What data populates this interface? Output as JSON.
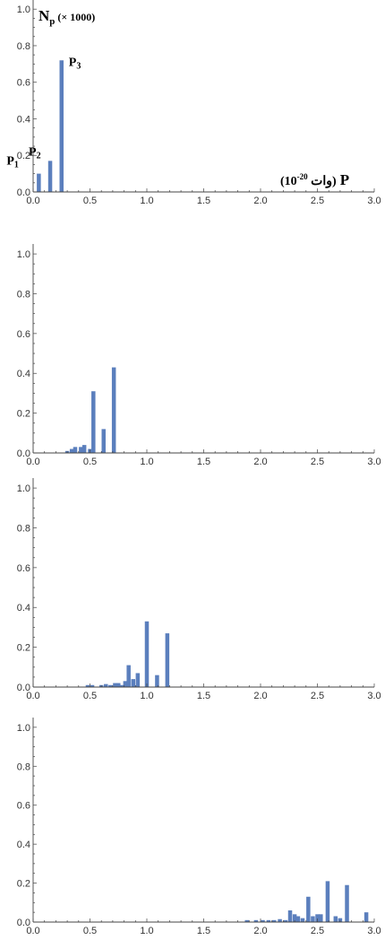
{
  "colors": {
    "bar": "#5b7fbd",
    "axis": "#444444",
    "text": "#333333"
  },
  "chart_data": [
    {
      "type": "bar",
      "xlim": [
        0,
        3.0
      ],
      "ylim": [
        0,
        1.05
      ],
      "xticks": [
        "0.0",
        "0.5",
        "1.0",
        "1.5",
        "2.0",
        "2.5",
        "3.0"
      ],
      "yticks": [
        "0.0",
        "0.2",
        "0.4",
        "0.6",
        "0.8",
        "1.0"
      ],
      "ylabel": {
        "main": "N",
        "sub": "p",
        "suffix": "(× 1000)"
      },
      "xlabel": {
        "rtl": "(10",
        "exp": "-20",
        "unit": " وات)",
        "var": "P"
      },
      "annotations": [
        {
          "main": "P",
          "sub": "1",
          "x": 0.05,
          "y": 0.09
        },
        {
          "main": "P",
          "sub": "2",
          "x": 0.15,
          "y": 0.17
        },
        {
          "main": "P",
          "sub": "3",
          "x": 0.25,
          "y": 0.72
        }
      ],
      "bars": [
        {
          "x": 0.05,
          "y": 0.1
        },
        {
          "x": 0.15,
          "y": 0.17
        },
        {
          "x": 0.25,
          "y": 0.72
        }
      ]
    },
    {
      "type": "bar",
      "xlim": [
        0,
        3.0
      ],
      "ylim": [
        0,
        1.05
      ],
      "xticks": [
        "0.0",
        "0.5",
        "1.0",
        "1.5",
        "2.0",
        "2.5",
        "3.0"
      ],
      "yticks": [
        "0.0",
        "0.2",
        "0.4",
        "0.6",
        "0.8",
        "1.0"
      ],
      "bars": [
        {
          "x": 0.3,
          "y": 0.01
        },
        {
          "x": 0.34,
          "y": 0.02
        },
        {
          "x": 0.37,
          "y": 0.03
        },
        {
          "x": 0.42,
          "y": 0.03
        },
        {
          "x": 0.45,
          "y": 0.04
        },
        {
          "x": 0.5,
          "y": 0.02
        },
        {
          "x": 0.53,
          "y": 0.31
        },
        {
          "x": 0.62,
          "y": 0.12
        },
        {
          "x": 0.71,
          "y": 0.43
        }
      ]
    },
    {
      "type": "bar",
      "xlim": [
        0,
        3.0
      ],
      "ylim": [
        0,
        1.05
      ],
      "xticks": [
        "0.0",
        "0.5",
        "1.0",
        "1.5",
        "2.0",
        "2.5",
        "3.0"
      ],
      "yticks": [
        "0.0",
        "0.2",
        "0.4",
        "0.6",
        "0.8",
        "1.0"
      ],
      "bars": [
        {
          "x": 0.48,
          "y": 0.01
        },
        {
          "x": 0.52,
          "y": 0.01
        },
        {
          "x": 0.6,
          "y": 0.01
        },
        {
          "x": 0.64,
          "y": 0.015
        },
        {
          "x": 0.68,
          "y": 0.01
        },
        {
          "x": 0.72,
          "y": 0.02
        },
        {
          "x": 0.75,
          "y": 0.02
        },
        {
          "x": 0.78,
          "y": 0.01
        },
        {
          "x": 0.81,
          "y": 0.03
        },
        {
          "x": 0.84,
          "y": 0.11
        },
        {
          "x": 0.88,
          "y": 0.04
        },
        {
          "x": 0.92,
          "y": 0.07
        },
        {
          "x": 1.0,
          "y": 0.33
        },
        {
          "x": 1.09,
          "y": 0.06
        },
        {
          "x": 1.18,
          "y": 0.27
        }
      ]
    },
    {
      "type": "bar",
      "xlim": [
        0,
        3.0
      ],
      "ylim": [
        0,
        1.05
      ],
      "xticks": [
        "0.0",
        "0.5",
        "1.0",
        "1.5",
        "2.0",
        "2.5",
        "3.0"
      ],
      "yticks": [
        "0.0",
        "0.2",
        "0.4",
        "0.6",
        "0.8",
        "1.0"
      ],
      "bars": [
        {
          "x": 1.88,
          "y": 0.01
        },
        {
          "x": 1.96,
          "y": 0.01
        },
        {
          "x": 2.02,
          "y": 0.01
        },
        {
          "x": 2.07,
          "y": 0.01
        },
        {
          "x": 2.12,
          "y": 0.01
        },
        {
          "x": 2.17,
          "y": 0.015
        },
        {
          "x": 2.22,
          "y": 0.01
        },
        {
          "x": 2.26,
          "y": 0.06
        },
        {
          "x": 2.3,
          "y": 0.04
        },
        {
          "x": 2.33,
          "y": 0.03
        },
        {
          "x": 2.37,
          "y": 0.02
        },
        {
          "x": 2.42,
          "y": 0.13
        },
        {
          "x": 2.46,
          "y": 0.03
        },
        {
          "x": 2.5,
          "y": 0.04
        },
        {
          "x": 2.53,
          "y": 0.04
        },
        {
          "x": 2.59,
          "y": 0.21
        },
        {
          "x": 2.66,
          "y": 0.03
        },
        {
          "x": 2.7,
          "y": 0.02
        },
        {
          "x": 2.76,
          "y": 0.19
        },
        {
          "x": 2.93,
          "y": 0.05
        }
      ]
    }
  ]
}
